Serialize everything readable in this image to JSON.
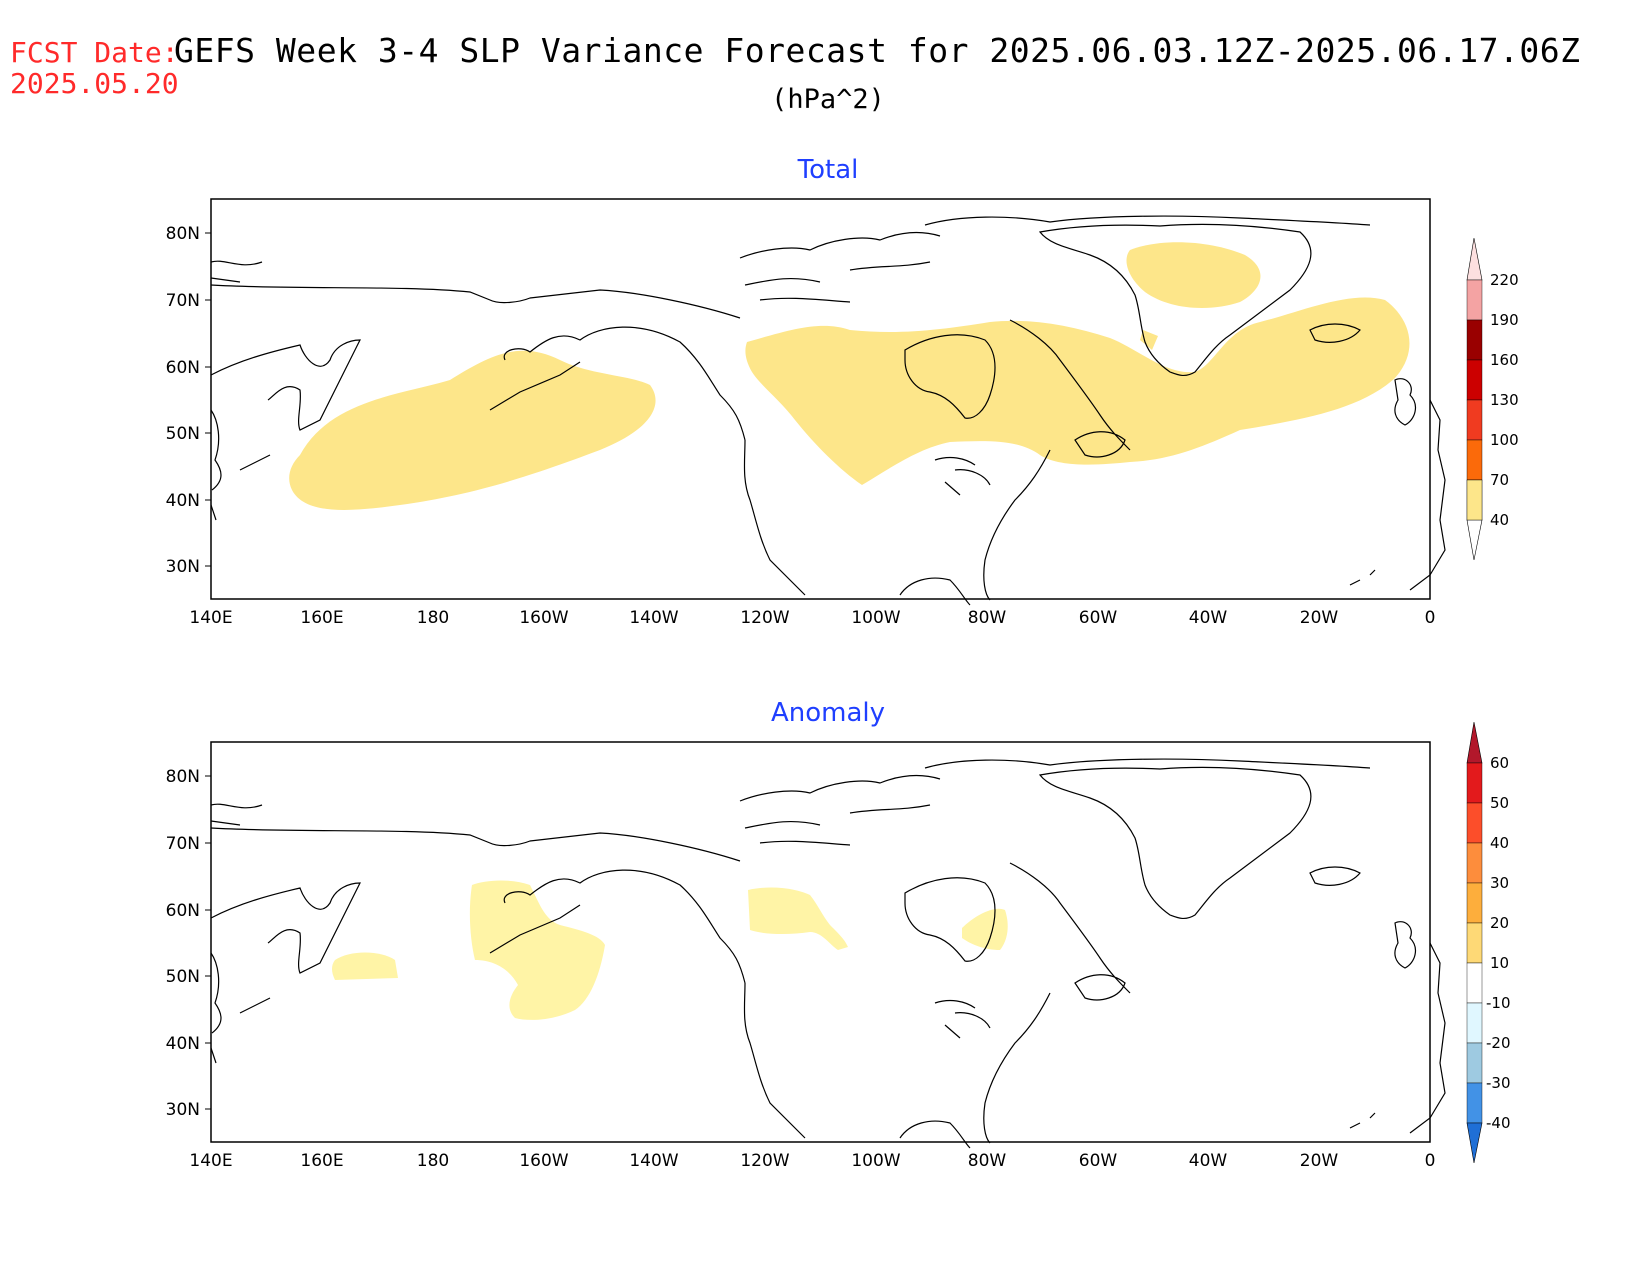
{
  "header": {
    "fcst_label": "FCST Date:",
    "fcst_date": "2025.05.20",
    "title": "GEFS Week 3-4 SLP Variance Forecast for 2025.06.03.12Z-2025.06.17.06Z",
    "units": "(hPa^2)"
  },
  "axes": {
    "x_ticks": [
      "140E",
      "160E",
      "180",
      "160W",
      "140W",
      "120W",
      "100W",
      "80W",
      "60W",
      "40W",
      "20W",
      "0"
    ],
    "y_ticks": [
      "80N",
      "70N",
      "60N",
      "50N",
      "40N",
      "30N"
    ]
  },
  "panels": [
    {
      "title": "Total",
      "colorbar": {
        "labels": [
          "40",
          "70",
          "100",
          "130",
          "160",
          "190",
          "220"
        ],
        "colors": [
          "#fde68a",
          "#fca50a",
          "#fb6a0a",
          "#f03b20",
          "#cc0000",
          "#990000",
          "#f4a3a3",
          "#fde0e0"
        ]
      }
    },
    {
      "title": "Anomaly",
      "colorbar": {
        "labels": [
          "60",
          "50",
          "40",
          "30",
          "20",
          "10",
          "-10",
          "-20",
          "-30",
          "-40"
        ],
        "colors": [
          "#b2182b",
          "#e31a1c",
          "#fc4e2a",
          "#fd8d3c",
          "#fdae3c",
          "#fed976",
          "#fff7a6",
          "#ffffff",
          "#e0f7ff",
          "#9ecae1",
          "#4292e6",
          "#1f6fd6"
        ]
      }
    }
  ],
  "colors": {
    "fcst_label": "#ff2a2a",
    "panel_title": "#1f3fff",
    "shade_total": "#fde68a",
    "shade_anomaly": "#fff4a6",
    "coastline": "#000000"
  }
}
